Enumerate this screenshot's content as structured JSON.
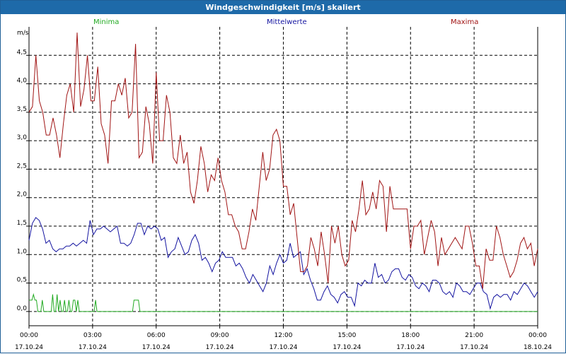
{
  "window": {
    "title": "Windgeschwindigkeit [m/s] skaliert"
  },
  "colors": {
    "minima": "#22aa22",
    "mittelwerte": "#1414a0",
    "maxima": "#a01414",
    "titlebar": "#1e6aa9"
  },
  "chart_data": {
    "type": "line",
    "title": "Windgeschwindigkeit [m/s] skaliert",
    "ylabel": "m/s",
    "ylim": [
      -0.25,
      5.0
    ],
    "xlim_hours": [
      0,
      24
    ],
    "grid": true,
    "legend_position": "top",
    "y_ticks": [
      "0,0",
      "0,5",
      "1,0",
      "1,5",
      "2,0",
      "2,5",
      "3,0",
      "3,5",
      "4,0",
      "4,5"
    ],
    "x_ticks": [
      {
        "time": "00:00",
        "date": "17.10.24"
      },
      {
        "time": "03:00",
        "date": "17.10.24"
      },
      {
        "time": "06:00",
        "date": "17.10.24"
      },
      {
        "time": "09:00",
        "date": "17.10.24"
      },
      {
        "time": "12:00",
        "date": "17.10.24"
      },
      {
        "time": "15:00",
        "date": "17.10.24"
      },
      {
        "time": "18:00",
        "date": "17.10.24"
      },
      {
        "time": "21:00",
        "date": "17.10.24"
      },
      {
        "time": "00:00",
        "date": "18.10.24"
      }
    ],
    "series": [
      {
        "name": "Minima",
        "values": [
          0.2,
          0.2,
          0.2,
          0.3,
          0.2,
          0.2,
          0.0,
          0.0,
          0.0,
          0.2,
          0.0,
          0.0,
          0.0,
          0.0,
          0.0,
          0.0,
          0.3,
          0.0,
          0.0,
          0.3,
          0.0,
          0.2,
          0.0,
          0.0,
          0.2,
          0.0,
          0.0,
          0.2,
          0.0,
          0.0,
          0.2,
          0.2,
          0.0,
          0.2,
          0.0,
          0.0,
          0.0,
          0.0,
          0.0,
          0.0,
          0.0,
          0.0,
          0.0,
          0.0,
          0.0,
          0.2,
          0.0,
          0.0,
          0.0,
          0.0,
          0.0,
          0.0,
          0.0,
          0.0,
          0.0,
          0.0,
          0.0,
          0.0,
          0.0,
          0.0,
          0.0,
          0.0,
          0.0,
          0.0,
          0.0,
          0.0,
          0.0,
          0.0,
          0.0,
          0.0,
          0.0,
          0.2,
          0.2,
          0.2,
          0.2,
          0.0,
          0.0,
          0.0,
          0.0,
          0.0,
          0.0,
          0.0,
          0.0,
          0.0,
          0.0,
          0.0,
          0.0,
          0.0,
          0.0,
          0.0,
          0.0,
          0.0,
          0.0,
          0.0,
          0.0,
          0.0,
          0.0,
          0.0,
          0.0,
          0.0,
          0.0,
          0.0,
          0.0,
          0.0,
          0.0,
          0.0,
          0.0,
          0.0,
          0.0,
          0.0,
          0.0,
          0.0,
          0.0,
          0.0,
          0.0,
          0.0,
          0.0,
          0.0,
          0.0,
          0.0,
          0.0,
          0.0,
          0.0,
          0.0,
          0.0,
          0.0,
          0.0,
          0.0,
          0.0,
          0.0,
          0.0,
          0.0,
          0.0,
          0.0,
          0.0,
          0.0,
          0.0,
          0.0,
          0.0,
          0.0,
          0.0,
          0.0,
          0.0,
          0.0,
          0.0,
          0.0,
          0.0,
          0.0,
          0.0,
          0.0,
          0.0,
          0.0,
          0.0,
          0.0,
          0.0,
          0.0,
          0.0,
          0.0,
          0.0,
          0.0,
          0.0,
          0.0,
          0.0,
          0.0,
          0.0,
          0.0,
          0.0,
          0.0,
          0.0,
          0.0,
          0.0,
          0.0,
          0.0,
          0.0,
          0.0,
          0.0,
          0.0,
          0.0,
          0.0,
          0.0,
          0.0,
          0.0,
          0.0,
          0.0,
          0.0,
          0.0,
          0.0,
          0.0,
          0.0,
          0.0,
          0.0,
          0.0,
          0.0,
          0.0,
          0.0,
          0.0,
          0.0,
          0.0,
          0.0,
          0.0,
          0.0,
          0.0,
          0.0,
          0.0,
          0.0,
          0.0,
          0.0,
          0.0,
          0.0,
          0.0,
          0.0,
          0.0,
          0.0,
          0.0,
          0.0,
          0.0,
          0.0,
          0.0,
          0.0,
          0.0,
          0.0,
          0.0,
          0.0,
          0.0,
          0.0,
          0.0,
          0.0,
          0.0,
          0.0,
          0.0,
          0.0,
          0.0,
          0.0,
          0.0,
          0.0,
          0.0,
          0.0,
          0.0,
          0.0,
          0.0,
          0.0,
          0.0,
          0.0,
          0.0,
          0.0,
          0.0,
          0.0,
          0.0,
          0.0,
          0.0,
          0.0,
          0.0,
          0.0,
          0.0,
          0.0,
          0.0,
          0.0,
          0.0,
          0.0,
          0.0,
          0.0,
          0.0,
          0.0,
          0.0,
          0.0,
          0.0,
          0.0,
          0.0,
          0.0,
          0.0,
          0.0,
          0.0,
          0.0,
          0.0,
          0.0,
          0.0,
          0.0,
          0.0,
          0.0,
          0.0,
          0.0,
          0.0,
          0.0,
          0.0,
          0.0,
          0.0,
          0.0,
          0.0,
          0.0,
          0.0,
          0.0,
          0.0,
          0.0,
          0.0,
          0.0,
          0.0,
          0.0,
          0.0,
          0.0,
          0.0,
          0.0,
          0.0,
          0.0,
          0.0,
          0.0,
          0.0,
          0.0,
          0.0,
          0.0,
          0.0,
          0.0,
          0.0,
          0.0,
          0.0,
          0.0,
          0.0,
          0.0,
          0.0,
          0.0,
          0.0,
          0.0,
          0.0,
          0.0,
          0.0,
          0.0,
          0.0,
          0.0,
          0.0,
          0.0,
          0.0,
          0.0,
          0.0,
          0.0,
          0.0,
          0.0,
          0.0,
          0.0,
          0.0,
          0.0,
          0.0,
          0.0,
          0.0,
          0.0,
          0.0,
          0.0
        ]
      },
      {
        "name": "Mittelwerte",
        "values": [
          1.25,
          1.55,
          1.65,
          1.6,
          1.45,
          1.2,
          1.25,
          1.1,
          1.05,
          1.1,
          1.1,
          1.15,
          1.15,
          1.2,
          1.15,
          1.2,
          1.25,
          1.2,
          1.6,
          1.35,
          1.45,
          1.45,
          1.5,
          1.45,
          1.4,
          1.45,
          1.5,
          1.2,
          1.2,
          1.15,
          1.2,
          1.35,
          1.55,
          1.55,
          1.35,
          1.5,
          1.45,
          1.5,
          1.45,
          1.25,
          1.3,
          0.95,
          1.05,
          1.1,
          1.3,
          1.15,
          1.0,
          1.05,
          1.25,
          1.35,
          1.2,
          0.9,
          0.95,
          0.85,
          0.7,
          0.85,
          0.9,
          1.05,
          0.95,
          0.95,
          0.95,
          0.8,
          0.85,
          0.75,
          0.6,
          0.5,
          0.65,
          0.55,
          0.45,
          0.35,
          0.5,
          0.8,
          0.65,
          0.85,
          1.0,
          0.85,
          0.9,
          1.2,
          0.95,
          1.0,
          1.05,
          0.65,
          0.75,
          0.55,
          0.4,
          0.2,
          0.2,
          0.35,
          0.45,
          0.3,
          0.25,
          0.15,
          0.3,
          0.35,
          0.25,
          0.25,
          0.1,
          0.5,
          0.45,
          0.55,
          0.5,
          0.5,
          0.85,
          0.6,
          0.65,
          0.5,
          0.55,
          0.7,
          0.75,
          0.75,
          0.6,
          0.55,
          0.65,
          0.6,
          0.45,
          0.4,
          0.5,
          0.45,
          0.35,
          0.55,
          0.55,
          0.5,
          0.35,
          0.3,
          0.35,
          0.25,
          0.5,
          0.45,
          0.35,
          0.35,
          0.3,
          0.4,
          0.5,
          0.5,
          0.35,
          0.3,
          0.05,
          0.25,
          0.3,
          0.25,
          0.3,
          0.3,
          0.2,
          0.35,
          0.3,
          0.4,
          0.5,
          0.45,
          0.35,
          0.25,
          0.35
        ]
      },
      {
        "name": "Maxima",
        "values": [
          3.5,
          3.6,
          4.5,
          3.7,
          3.5,
          3.1,
          3.1,
          3.4,
          3.1,
          2.7,
          3.3,
          3.8,
          4.0,
          3.5,
          4.9,
          3.6,
          3.9,
          4.5,
          3.7,
          3.7,
          4.3,
          3.3,
          3.1,
          2.6,
          3.7,
          3.7,
          4.0,
          3.8,
          4.1,
          3.4,
          3.5,
          4.7,
          2.7,
          2.8,
          3.6,
          3.3,
          2.6,
          4.2,
          3.0,
          3.0,
          3.8,
          3.5,
          2.7,
          2.6,
          3.1,
          2.6,
          2.8,
          2.1,
          1.9,
          2.3,
          2.9,
          2.6,
          2.1,
          2.4,
          2.3,
          2.7,
          2.3,
          2.1,
          1.7,
          1.7,
          1.5,
          1.4,
          1.1,
          1.1,
          1.4,
          1.8,
          1.6,
          2.2,
          2.8,
          2.3,
          2.5,
          3.1,
          3.2,
          3.0,
          2.2,
          2.2,
          1.7,
          1.9,
          1.3,
          0.7,
          0.7,
          0.8,
          1.3,
          1.1,
          0.8,
          1.4,
          1.0,
          0.5,
          1.5,
          1.2,
          1.5,
          1.0,
          0.8,
          0.9,
          1.6,
          1.4,
          1.8,
          2.3,
          1.7,
          1.8,
          2.1,
          1.8,
          2.3,
          2.2,
          1.4,
          2.2,
          1.8,
          1.8,
          1.8,
          1.8,
          1.8,
          1.1,
          1.5,
          1.5,
          1.6,
          1.0,
          1.3,
          1.6,
          1.4,
          0.8,
          1.3,
          1.0,
          1.1,
          1.2,
          1.3,
          1.2,
          1.1,
          1.5,
          1.5,
          1.2,
          0.8,
          0.8,
          0.4,
          1.1,
          0.9,
          0.9,
          1.5,
          1.3,
          1.0,
          0.8,
          0.6,
          0.7,
          0.9,
          1.2,
          1.3,
          1.1,
          1.2,
          0.8,
          1.1
        ]
      }
    ]
  }
}
